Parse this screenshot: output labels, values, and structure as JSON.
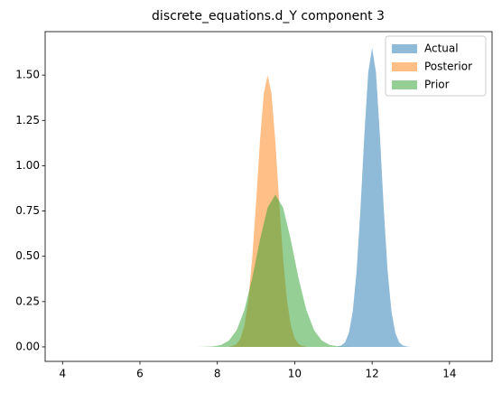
{
  "chart_data": {
    "type": "area",
    "title": "discrete_equations.d_Y component 3",
    "series": [
      {
        "name": "Actual",
        "color": "#1f77b4",
        "x": [
          11.0,
          11.1,
          11.2,
          11.3,
          11.4,
          11.5,
          11.6,
          11.7,
          11.8,
          11.9,
          12.0,
          12.1,
          12.2,
          12.3,
          12.4,
          12.5,
          12.6,
          12.7,
          12.8,
          12.9,
          13.0
        ],
        "values": [
          0,
          0.002,
          0.007,
          0.025,
          0.077,
          0.196,
          0.421,
          0.766,
          1.173,
          1.515,
          1.65,
          1.515,
          1.173,
          0.766,
          0.421,
          0.196,
          0.077,
          0.025,
          0.007,
          0.002,
          0
        ]
      },
      {
        "name": "Posterior",
        "color": "#ff7f0e",
        "x": [
          8.3,
          8.4,
          8.5,
          8.6,
          8.7,
          8.8,
          8.9,
          9.0,
          9.1,
          9.2,
          9.3,
          9.4,
          9.5,
          9.6,
          9.7,
          9.8,
          9.9,
          10.0,
          10.1,
          10.2,
          10.3
        ],
        "values": [
          0.001,
          0.005,
          0.016,
          0.047,
          0.118,
          0.257,
          0.485,
          0.795,
          1.131,
          1.398,
          1.5,
          1.398,
          1.131,
          0.795,
          0.485,
          0.257,
          0.118,
          0.047,
          0.016,
          0.005,
          0.001
        ]
      },
      {
        "name": "Prior",
        "color": "#2ca02c",
        "x": [
          7.5,
          7.7,
          7.9,
          8.1,
          8.3,
          8.5,
          8.7,
          8.9,
          9.1,
          9.3,
          9.5,
          9.7,
          9.9,
          10.1,
          10.3,
          10.5,
          10.7,
          10.9,
          11.1,
          11.3,
          11.5
        ],
        "values": [
          0,
          0.001,
          0.003,
          0.011,
          0.035,
          0.092,
          0.204,
          0.378,
          0.589,
          0.769,
          0.84,
          0.769,
          0.589,
          0.378,
          0.204,
          0.092,
          0.035,
          0.011,
          0.003,
          0.001,
          0
        ]
      }
    ],
    "opacity": 0.5,
    "xlim": [
      3.55,
      15.1
    ],
    "ylim": [
      -0.08,
      1.74
    ],
    "xticks": [
      4,
      6,
      8,
      10,
      12,
      14
    ],
    "yticks": [
      {
        "value": 0,
        "label": "0.00"
      },
      {
        "value": 0.25,
        "label": "0.25"
      },
      {
        "value": 0.5,
        "label": "0.50"
      },
      {
        "value": 0.75,
        "label": "0.75"
      },
      {
        "value": 1,
        "label": "1.00"
      },
      {
        "value": 1.25,
        "label": "1.25"
      },
      {
        "value": 1.5,
        "label": "1.50"
      }
    ],
    "legend": "upper right"
  }
}
